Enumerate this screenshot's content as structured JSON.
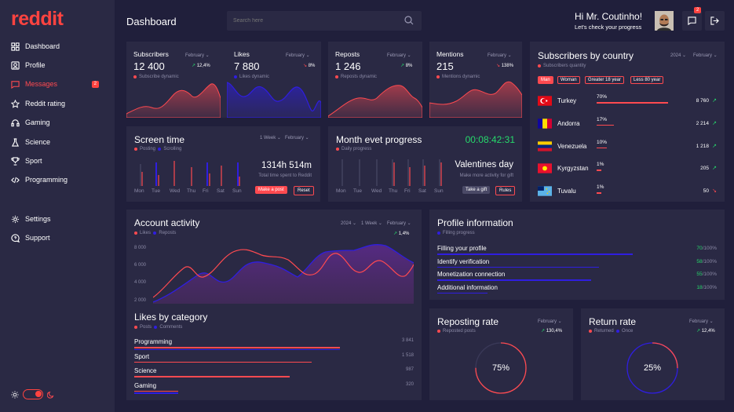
{
  "brand": {
    "logo": "reddit",
    "accent": "#ff4340",
    "secondary": "#2f1ee0"
  },
  "header": {
    "title": "Dashboard",
    "search_placeholder": "Search here",
    "greeting": "Hi Mr. Coutinho!",
    "subtitle": "Let's check your progress",
    "chat_badge": "2"
  },
  "sidebar": {
    "items": [
      {
        "label": "Dashboard",
        "icon": "grid-icon"
      },
      {
        "label": "Profile",
        "icon": "profile-icon"
      },
      {
        "label": "Messages",
        "icon": "message-icon",
        "badge": "2"
      },
      {
        "label": "Reddit rating",
        "icon": "star-icon"
      },
      {
        "label": "Gaming",
        "icon": "headphones-icon"
      },
      {
        "label": "Science",
        "icon": "flask-icon"
      },
      {
        "label": "Sport",
        "icon": "trophy-icon"
      },
      {
        "label": "Programming",
        "icon": "code-icon"
      },
      {
        "label": "Settings",
        "icon": "gear-icon"
      },
      {
        "label": "Support",
        "icon": "support-icon"
      }
    ]
  },
  "stats": [
    {
      "label": "Subscribers",
      "month": "February",
      "value": "12 400",
      "change": "12,4%",
      "legend": "Subscribe dynamic",
      "up": true
    },
    {
      "label": "Likes",
      "month": "February",
      "value": "7 880",
      "change": "8%",
      "legend": "Likes dynamic",
      "up": false
    },
    {
      "label": "Reposts",
      "month": "February",
      "value": "1 246",
      "change": "8%",
      "legend": "Reposts dynamic",
      "up": true
    },
    {
      "label": "Mentions",
      "month": "February",
      "value": "215",
      "change": "138%",
      "legend": "Mentions dynamic",
      "up": false
    }
  ],
  "country": {
    "title": "Subscribers by country",
    "year": "2024",
    "month": "February",
    "legend": "Subscribers quantity",
    "filters": [
      "Man",
      "Woman",
      "Greater 18 year",
      "Less  80 year"
    ],
    "rows": [
      {
        "name": "Turkey",
        "pct": "70%",
        "pct_num": 70,
        "value": "8 760",
        "up": true
      },
      {
        "name": "Andorra",
        "pct": "17%",
        "pct_num": 17,
        "value": "2 214",
        "up": true
      },
      {
        "name": "Venezuela",
        "pct": "10%",
        "pct_num": 10,
        "value": "1 218",
        "up": true
      },
      {
        "name": "Kyrgyzstan",
        "pct": "1%",
        "pct_num": 1,
        "value": "205",
        "up": true
      },
      {
        "name": "Tuvalu",
        "pct": "1%",
        "pct_num": 1,
        "value": "50",
        "up": false
      }
    ]
  },
  "screen_time": {
    "title": "Screen time",
    "period": "1 Week",
    "month": "February",
    "legend_a": "Posting",
    "legend_b": "Scrolling",
    "value": "1314h 514m",
    "caption": "Total time spent to Reddit",
    "btn_primary": "Make a post",
    "btn_secondary": "Reset",
    "days": [
      "Mon",
      "Tue",
      "Wed",
      "Thu",
      "Fri",
      "Sat",
      "Sun"
    ]
  },
  "month_event": {
    "title": "Month evet progress",
    "timer": "00:08:42:31",
    "legend": "Daily progress",
    "value": "Valentines day",
    "caption": "Make more activity for gift",
    "btn_primary": "Take a gift",
    "btn_secondary": "Rules",
    "days": [
      "Mon",
      "Tue",
      "Wed",
      "Thu",
      "Fri",
      "Sat",
      "Sun"
    ]
  },
  "account_activity": {
    "title": "Account activity",
    "year": "2024",
    "period": "1 Week",
    "month": "February",
    "legend_a": "Likes",
    "legend_b": "Reposts",
    "change": "1,4%",
    "y_ticks": [
      "8 000",
      "6 000",
      "4 000",
      "2 000"
    ]
  },
  "likes_by_category": {
    "title": "Likes by category",
    "legend_a": "Posts",
    "legend_b": "Comments",
    "rows": [
      {
        "name": "Programming",
        "value": "3 841"
      },
      {
        "name": "Sport",
        "value": "1 518"
      },
      {
        "name": "Science",
        "value": "987"
      },
      {
        "name": "Gaming",
        "value": "320"
      }
    ]
  },
  "profile_info": {
    "title": "Profile information",
    "legend": "Filling progress",
    "rows": [
      {
        "name": "Filling your profile",
        "done": "70",
        "total": "/100%",
        "pct_num": 70
      },
      {
        "name": "Identify verification",
        "done": "58",
        "total": "/100%",
        "pct_num": 58
      },
      {
        "name": "Monetization connection",
        "done": "55",
        "total": "/100%",
        "pct_num": 55
      },
      {
        "name": "Additional information",
        "done": "18",
        "total": "/100%",
        "pct_num": 18
      }
    ]
  },
  "reposting_rate": {
    "title": "Reposting rate",
    "month": "February",
    "legend": "Reposted posts",
    "change": "130,4%",
    "value": "75%",
    "value_num": 75
  },
  "return_rate": {
    "title": "Return rate",
    "month": "February",
    "legend_a": "Returned",
    "legend_b": "Once",
    "change": "12,4%",
    "value": "25%",
    "value_num": 25
  }
}
